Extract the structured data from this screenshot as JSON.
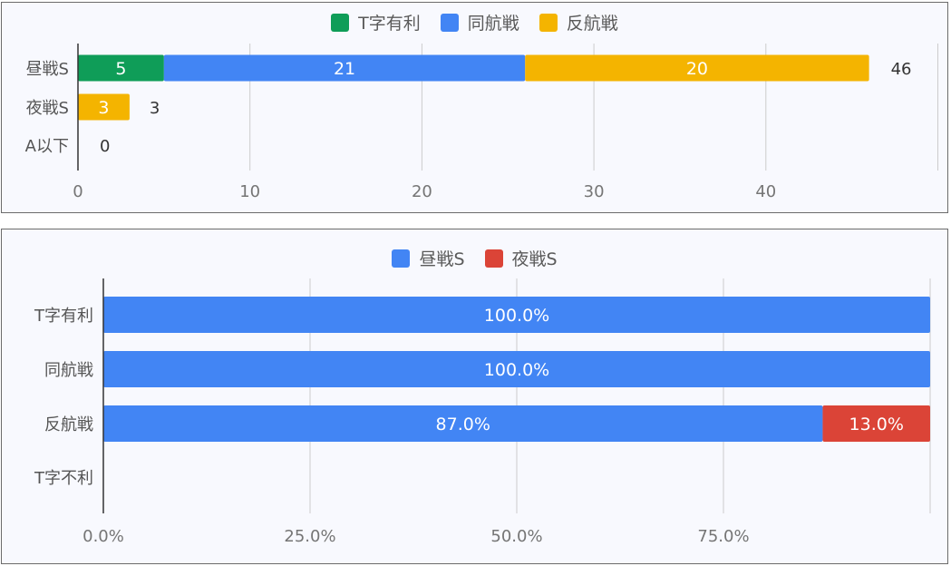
{
  "colors": {
    "t_favorable": "#0f9d58",
    "parallel": "#4285f4",
    "reverse": "#f4b400",
    "day_s": "#4285f4",
    "night_s": "#db4437",
    "grid": "#cccccc",
    "axis": "#333333",
    "tick_text": "#757575",
    "category_text": "#555555"
  },
  "chart_data": [
    {
      "type": "bar",
      "orientation": "horizontal",
      "stacked": true,
      "categories": [
        "昼戦S",
        "夜戦S",
        "A以下"
      ],
      "series": [
        {
          "name": "T字有利",
          "values": [
            5,
            0,
            0
          ]
        },
        {
          "name": "同航戦",
          "values": [
            21,
            0,
            0
          ]
        },
        {
          "name": "反航戦",
          "values": [
            20,
            3,
            0
          ]
        }
      ],
      "totals": [
        46,
        3,
        0
      ],
      "x_ticks": [
        "0",
        "10",
        "20",
        "30",
        "40"
      ],
      "xlim": [
        0,
        50
      ],
      "grid": true,
      "legend": "top"
    },
    {
      "type": "bar",
      "orientation": "horizontal",
      "stacked": true,
      "percent": true,
      "categories": [
        "T字有利",
        "同航戦",
        "反航戦",
        "T字不利"
      ],
      "series": [
        {
          "name": "昼戦S",
          "values": [
            100.0,
            100.0,
            87.0,
            null
          ],
          "labels": [
            "100.0%",
            "100.0%",
            "87.0%",
            ""
          ]
        },
        {
          "name": "夜戦S",
          "values": [
            0,
            0,
            13.0,
            null
          ],
          "labels": [
            "",
            "",
            "13.0%",
            ""
          ]
        }
      ],
      "x_ticks": [
        "0.0%",
        "25.0%",
        "50.0%",
        "75.0%"
      ],
      "xlim": [
        0,
        100
      ],
      "grid": true,
      "legend": "top"
    }
  ]
}
